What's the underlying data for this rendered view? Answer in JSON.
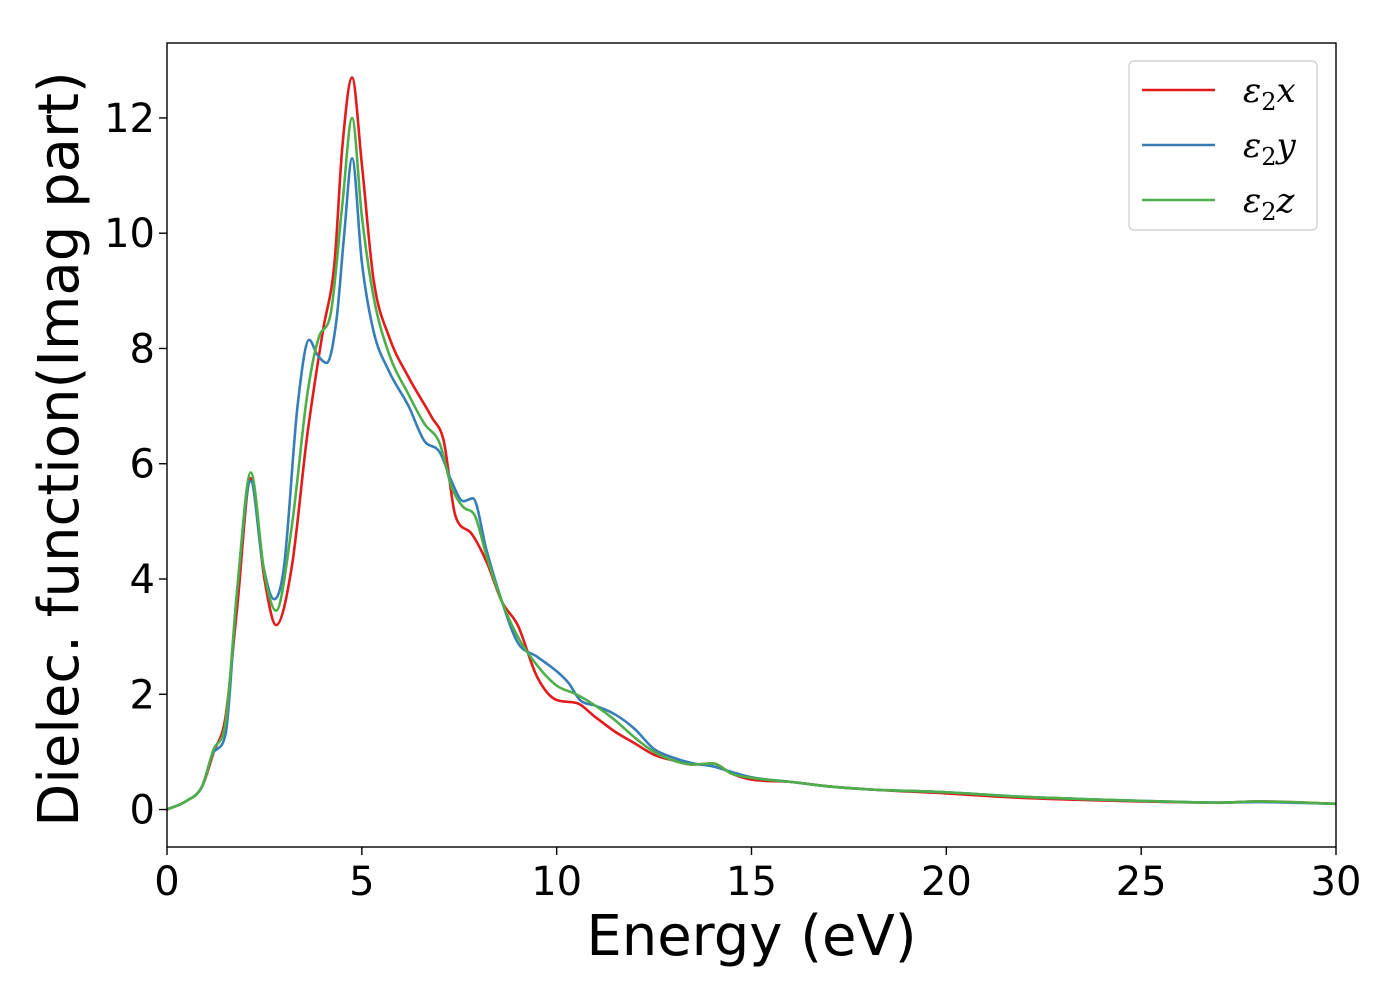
{
  "chart_data": {
    "type": "line",
    "xlabel": "Energy (eV)",
    "ylabel": "Dielec. function(Imag part)",
    "xlim": [
      0,
      30
    ],
    "ylim": [
      -0.65,
      13.3
    ],
    "xticks": [
      0,
      5,
      10,
      15,
      20,
      25,
      30
    ],
    "yticks": [
      0,
      2,
      4,
      6,
      8,
      10,
      12
    ],
    "grid": false,
    "legend_position": "top-right",
    "series": [
      {
        "name": "ε2x",
        "legend": {
          "base": "ε",
          "sub": "2",
          "var": "x"
        },
        "color": "#e41a1c",
        "x": [
          0,
          0.5,
          0.9,
          1.2,
          1.5,
          1.8,
          2.15,
          2.5,
          2.8,
          3.2,
          3.6,
          4.0,
          4.3,
          4.5,
          4.75,
          5.0,
          5.3,
          5.7,
          6.2,
          6.8,
          7.1,
          7.4,
          7.8,
          8.2,
          8.6,
          9.0,
          9.5,
          10.0,
          10.5,
          11.0,
          11.5,
          12.0,
          12.5,
          13.0,
          13.5,
          14.0,
          14.5,
          15.0,
          16.0,
          17.0,
          18.0,
          20.0,
          22.0,
          25.0,
          27.0,
          28.0,
          30.0
        ],
        "y": [
          0,
          0.15,
          0.4,
          1.0,
          1.6,
          3.5,
          5.75,
          4.0,
          3.2,
          4.2,
          6.5,
          8.3,
          9.5,
          11.5,
          12.7,
          11.2,
          9.2,
          8.2,
          7.5,
          6.8,
          6.4,
          5.1,
          4.8,
          4.3,
          3.6,
          3.2,
          2.3,
          1.9,
          1.85,
          1.6,
          1.35,
          1.15,
          0.95,
          0.85,
          0.78,
          0.8,
          0.62,
          0.52,
          0.48,
          0.4,
          0.35,
          0.28,
          0.2,
          0.14,
          0.12,
          0.14,
          0.1
        ]
      },
      {
        "name": "ε2y",
        "legend": {
          "base": "ε",
          "sub": "2",
          "var": "y"
        },
        "color": "#377eb8",
        "x": [
          0,
          0.5,
          0.9,
          1.2,
          1.5,
          1.8,
          2.15,
          2.45,
          2.75,
          3.0,
          3.35,
          3.65,
          3.85,
          4.1,
          4.35,
          4.55,
          4.75,
          5.0,
          5.3,
          5.7,
          6.2,
          6.6,
          7.0,
          7.3,
          7.6,
          7.85,
          8.2,
          8.6,
          9.0,
          9.5,
          10.0,
          10.3,
          10.6,
          11.0,
          11.5,
          12.0,
          12.5,
          13.0,
          13.5,
          14.0,
          14.5,
          15.0,
          16.0,
          17.0,
          18.0,
          20.0,
          22.0,
          25.0,
          27.0,
          28.0,
          30.0
        ],
        "y": [
          0,
          0.15,
          0.4,
          1.0,
          1.3,
          3.8,
          5.7,
          4.3,
          3.65,
          4.2,
          7.0,
          8.15,
          7.9,
          7.75,
          8.5,
          10.0,
          11.3,
          9.5,
          8.3,
          7.6,
          7.0,
          6.4,
          6.2,
          5.7,
          5.35,
          5.4,
          4.5,
          3.6,
          2.9,
          2.65,
          2.4,
          2.2,
          1.9,
          1.8,
          1.65,
          1.4,
          1.05,
          0.9,
          0.8,
          0.75,
          0.65,
          0.56,
          0.48,
          0.4,
          0.35,
          0.3,
          0.22,
          0.15,
          0.12,
          0.13,
          0.1
        ]
      },
      {
        "name": "ε2z",
        "legend": {
          "base": "ε",
          "sub": "2",
          "var": "z"
        },
        "color": "#4daf4a",
        "x": [
          0,
          0.5,
          0.9,
          1.2,
          1.5,
          1.8,
          2.15,
          2.5,
          2.8,
          3.2,
          3.6,
          3.9,
          4.2,
          4.5,
          4.75,
          5.0,
          5.3,
          5.7,
          6.2,
          6.6,
          7.0,
          7.3,
          7.6,
          7.9,
          8.2,
          8.6,
          9.0,
          9.5,
          10.0,
          10.5,
          11.0,
          11.5,
          12.0,
          12.5,
          13.0,
          13.5,
          14.0,
          14.5,
          15.0,
          16.0,
          17.0,
          18.0,
          20.0,
          22.0,
          25.0,
          27.0,
          28.0,
          30.0
        ],
        "y": [
          0,
          0.15,
          0.4,
          1.05,
          1.5,
          3.8,
          5.85,
          4.1,
          3.45,
          4.9,
          7.2,
          8.2,
          8.6,
          10.5,
          12.0,
          10.3,
          8.9,
          7.9,
          7.2,
          6.7,
          6.35,
          5.6,
          5.25,
          5.1,
          4.4,
          3.6,
          3.0,
          2.5,
          2.15,
          2.0,
          1.8,
          1.55,
          1.25,
          1.0,
          0.85,
          0.78,
          0.8,
          0.62,
          0.55,
          0.48,
          0.4,
          0.35,
          0.3,
          0.22,
          0.15,
          0.12,
          0.14,
          0.1
        ]
      }
    ]
  }
}
